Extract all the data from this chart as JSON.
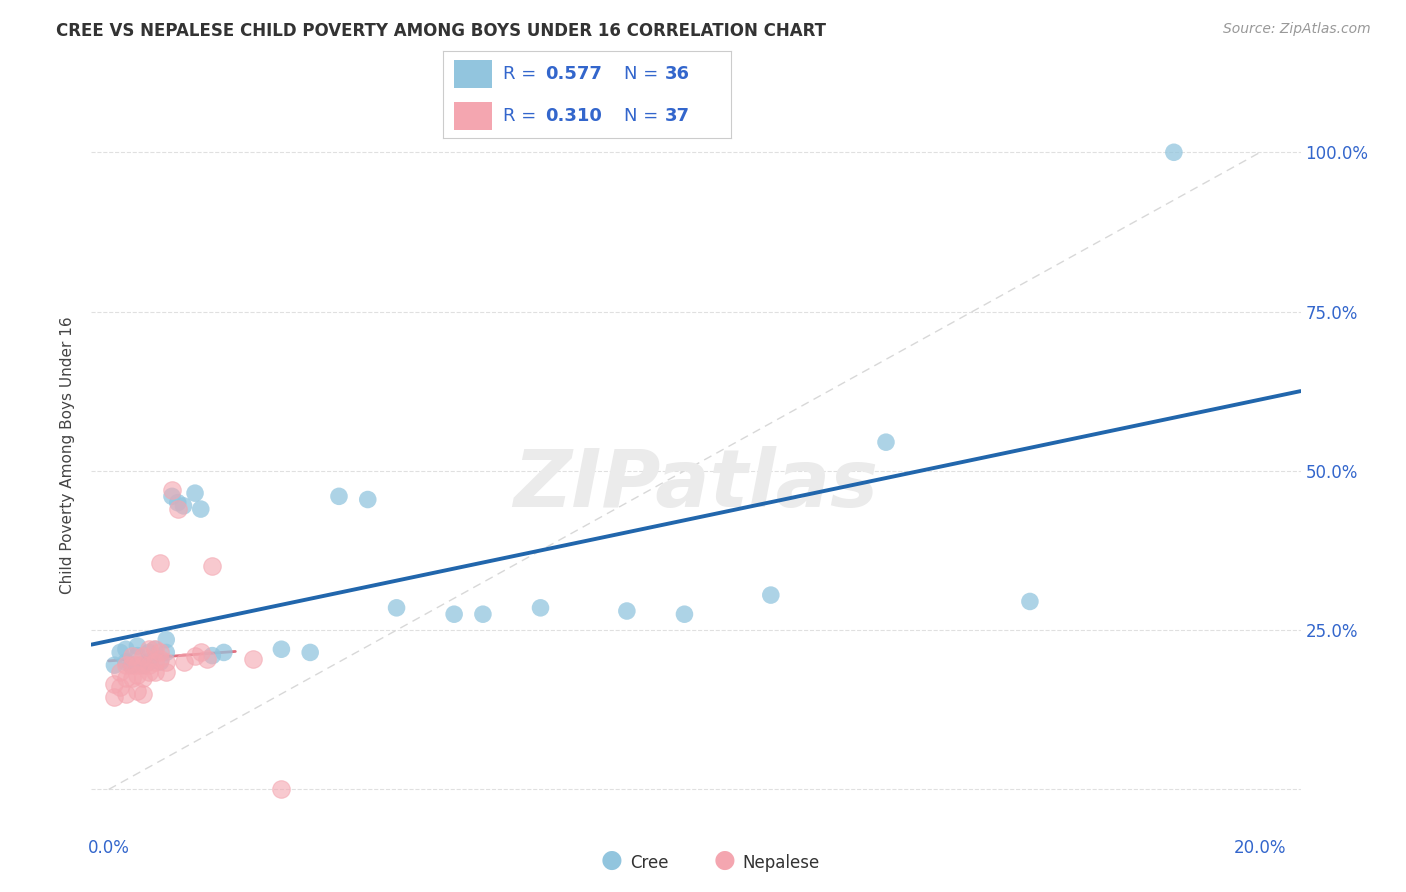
{
  "title": "CREE VS NEPALESE CHILD POVERTY AMONG BOYS UNDER 16 CORRELATION CHART",
  "source": "Source: ZipAtlas.com",
  "ylabel": "Child Poverty Among Boys Under 16",
  "cree_color": "#92c5de",
  "nepalese_color": "#f4a6b0",
  "cree_line_color": "#2166ac",
  "nepalese_line_color": "#e07080",
  "ref_line_color": "#d8d8d8",
  "legend_text_color": "#3366cc",
  "watermark_text": "ZIPatlas",
  "background_color": "#ffffff",
  "grid_color": "#e0e0e0",
  "cree_x": [
    0.001,
    0.002,
    0.003,
    0.003,
    0.004,
    0.004,
    0.005,
    0.005,
    0.006,
    0.007,
    0.007,
    0.008,
    0.009,
    0.01,
    0.01,
    0.011,
    0.012,
    0.013,
    0.015,
    0.016,
    0.018,
    0.02,
    0.03,
    0.035,
    0.04,
    0.045,
    0.05,
    0.06,
    0.065,
    0.075,
    0.09,
    0.1,
    0.115,
    0.135,
    0.16,
    0.185
  ],
  "cree_y": [
    0.195,
    0.215,
    0.2,
    0.22,
    0.195,
    0.195,
    0.21,
    0.225,
    0.195,
    0.215,
    0.2,
    0.22,
    0.2,
    0.215,
    0.235,
    0.46,
    0.45,
    0.445,
    0.465,
    0.44,
    0.21,
    0.215,
    0.22,
    0.215,
    0.46,
    0.455,
    0.285,
    0.275,
    0.275,
    0.285,
    0.28,
    0.275,
    0.305,
    0.545,
    0.295,
    1.0
  ],
  "nepalese_x": [
    0.001,
    0.001,
    0.002,
    0.002,
    0.003,
    0.003,
    0.003,
    0.004,
    0.004,
    0.004,
    0.005,
    0.005,
    0.005,
    0.006,
    0.006,
    0.006,
    0.006,
    0.007,
    0.007,
    0.007,
    0.008,
    0.008,
    0.008,
    0.009,
    0.009,
    0.009,
    0.01,
    0.01,
    0.011,
    0.012,
    0.013,
    0.015,
    0.016,
    0.017,
    0.018,
    0.025,
    0.03
  ],
  "nepalese_y": [
    0.145,
    0.165,
    0.16,
    0.185,
    0.15,
    0.175,
    0.195,
    0.175,
    0.195,
    0.21,
    0.155,
    0.18,
    0.195,
    0.15,
    0.175,
    0.195,
    0.21,
    0.185,
    0.195,
    0.22,
    0.185,
    0.2,
    0.22,
    0.205,
    0.215,
    0.355,
    0.185,
    0.2,
    0.47,
    0.44,
    0.2,
    0.21,
    0.215,
    0.205,
    0.35,
    0.205,
    0.0
  ],
  "xlim_min": -0.003,
  "xlim_max": 0.207,
  "ylim_min": -0.07,
  "ylim_max": 1.12
}
